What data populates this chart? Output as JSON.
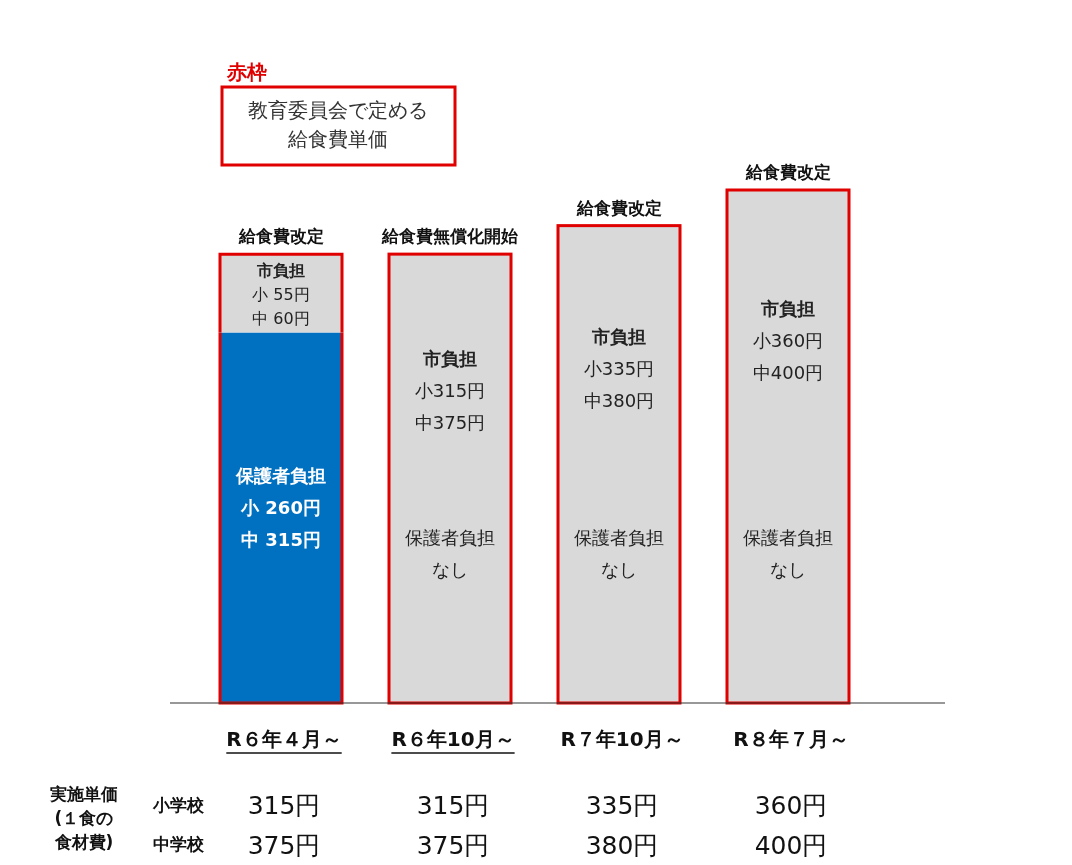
{
  "chart_data": {
    "type": "bar",
    "stacked": true,
    "categories": [
      "R６年４月～",
      "R６年10月～",
      "R７年10月～",
      "R８年７月～"
    ],
    "series": [
      {
        "name": "保護者負担",
        "color": "#0070c0",
        "values": [
          260,
          null,
          null,
          null
        ],
        "value_labels": [
          "小 260円中 315円",
          null,
          null,
          null
        ]
      },
      {
        "name": "市負担",
        "color": "#d9d9d9",
        "values": [
          55,
          315,
          335,
          360
        ],
        "value_labels": [
          "小 55円中 60円",
          "小315円中375円",
          "小335円中380円",
          "小360円中400円"
        ]
      }
    ],
    "tick_labels": "x",
    "annotations": [
      "赤枠",
      "教育委員会で定める給食費単価",
      "給食費改定",
      "給食費無償化開始",
      "給食費改定",
      "給食費改定",
      "実施単価(１食の食材費)",
      "小学校",
      "中学校",
      "315円",
      "315円",
      "335円",
      "360円",
      "375円",
      "375円",
      "380円",
      "400円",
      "保護者負担なし",
      "保護者負担なし",
      "保護者負担なし"
    ]
  }
}
